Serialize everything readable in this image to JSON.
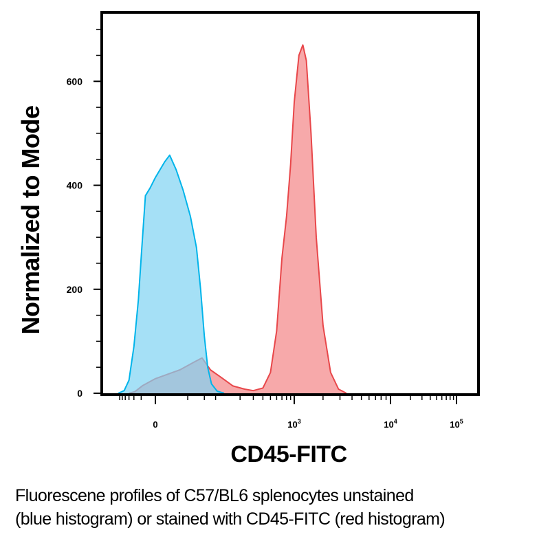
{
  "chart_data": {
    "type": "area",
    "title": "",
    "xlabel": "CD45-FITC",
    "ylabel": "Normalized to Mode",
    "x_scale": "biexponential",
    "x_ticks": [
      {
        "value": 0,
        "label": "0",
        "sup": ""
      },
      {
        "value": 1000,
        "label": "10",
        "sup": "3"
      },
      {
        "value": 10000,
        "label": "10",
        "sup": "4"
      },
      {
        "value": 100000,
        "label": "10",
        "sup": "5"
      }
    ],
    "y_ticks": [
      {
        "value": 0,
        "label": "0"
      },
      {
        "value": 200,
        "label": "200"
      },
      {
        "value": 400,
        "label": "400"
      },
      {
        "value": 600,
        "label": "600"
      }
    ],
    "ylim": [
      0,
      730
    ],
    "grid": false,
    "series": [
      {
        "name": "unstained",
        "color": "#00B4EA",
        "fill": "#7FD3F2",
        "points": [
          [
            -200,
            0
          ],
          [
            -130,
            5
          ],
          [
            -90,
            25
          ],
          [
            -60,
            90
          ],
          [
            -40,
            180
          ],
          [
            -28,
            280
          ],
          [
            -18,
            380
          ],
          [
            -8,
            395
          ],
          [
            0,
            415
          ],
          [
            6,
            445
          ],
          [
            10,
            458
          ],
          [
            16,
            430
          ],
          [
            24,
            390
          ],
          [
            34,
            340
          ],
          [
            44,
            280
          ],
          [
            52,
            200
          ],
          [
            60,
            110
          ],
          [
            68,
            50
          ],
          [
            78,
            18
          ],
          [
            95,
            4
          ],
          [
            120,
            0
          ]
        ]
      },
      {
        "name": "CD45-FITC",
        "color": "#E8474A",
        "fill": "#F69A9B",
        "points": [
          [
            -90,
            0
          ],
          [
            -55,
            3
          ],
          [
            -25,
            15
          ],
          [
            0,
            28
          ],
          [
            20,
            45
          ],
          [
            40,
            60
          ],
          [
            55,
            68
          ],
          [
            75,
            45
          ],
          [
            110,
            30
          ],
          [
            160,
            14
          ],
          [
            230,
            8
          ],
          [
            300,
            5
          ],
          [
            400,
            10
          ],
          [
            500,
            40
          ],
          [
            600,
            120
          ],
          [
            700,
            260
          ],
          [
            800,
            340
          ],
          [
            900,
            440
          ],
          [
            1000,
            560
          ],
          [
            1120,
            650
          ],
          [
            1230,
            670
          ],
          [
            1340,
            640
          ],
          [
            1500,
            500
          ],
          [
            1700,
            300
          ],
          [
            2000,
            130
          ],
          [
            2400,
            40
          ],
          [
            2900,
            8
          ],
          [
            3500,
            0
          ]
        ]
      }
    ]
  },
  "caption": {
    "line1": "Fluorescene profiles of C57/BL6 splenocytes unstained",
    "line2": "(blue histogram) or stained with CD45-FITC (red histogram)"
  }
}
